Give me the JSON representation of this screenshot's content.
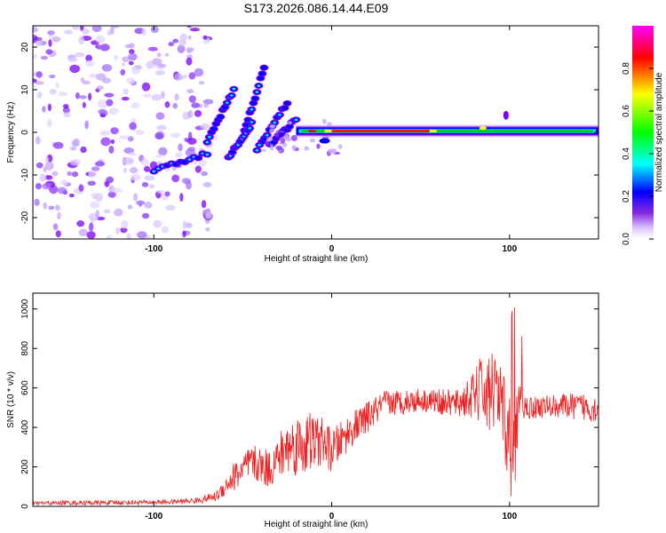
{
  "title": "S173.2026.086.14.44.E09",
  "chart_data": [
    {
      "type": "heatmap",
      "name": "spectrogram",
      "xlabel": "Height of straight line (km)",
      "ylabel": "Frequency (Hz)",
      "xlim": [
        -168,
        150
      ],
      "ylim": [
        -25,
        25
      ],
      "xticks": [
        -100,
        0,
        100
      ],
      "yticks": [
        -20,
        -10,
        0,
        10,
        20
      ],
      "grid": false,
      "colorbar": {
        "label": "Normalized spectral amplitude",
        "range": [
          0.0,
          1.0
        ],
        "ticks": [
          0.0,
          0.2,
          0.4,
          0.6,
          0.8
        ],
        "tick_labels": [
          "0.0",
          "0.2",
          "0.4",
          "0.6",
          "0.8"
        ],
        "colors": [
          "#ffffff",
          "#dcc8ff",
          "#7a00ff",
          "#0000ff",
          "#00ffff",
          "#00ff00",
          "#ffff00",
          "#ff0000",
          "#ff00ff"
        ]
      },
      "features": {
        "noise_region_x": [
          -168,
          -70
        ],
        "noise_blob_count": 300,
        "main_line": {
          "x": [
            -20,
            150
          ],
          "frequency_hz": 0.3,
          "peak_amplitude_x": [
            0,
            55
          ]
        },
        "chirp_streaks": [
          {
            "x": [
              -100,
              -70
            ],
            "f": [
              -9,
              -5
            ]
          },
          {
            "x": [
              -70,
              -55
            ],
            "f": [
              -2,
              10
            ]
          },
          {
            "x": [
              -50,
              -38
            ],
            "f": [
              -1,
              15
            ]
          },
          {
            "x": [
              -58,
              -45
            ],
            "f": [
              -6,
              2
            ]
          },
          {
            "x": [
              -42,
              -25
            ],
            "f": [
              -4,
              7
            ]
          },
          {
            "x": [
              -35,
              -20
            ],
            "f": [
              -3,
              3
            ]
          }
        ]
      }
    },
    {
      "type": "line",
      "name": "snr",
      "xlabel": "Height of straight line (km)",
      "ylabel": "SNR (10 * v/v)",
      "xlim": [
        -168,
        150
      ],
      "ylim": [
        0,
        1080
      ],
      "xticks": [
        -100,
        0,
        100
      ],
      "yticks": [
        0,
        200,
        400,
        600,
        800,
        1000
      ],
      "grid": false,
      "color": "#ee2222",
      "series": [
        {
          "name": "SNR",
          "x": [
            -168,
            -150,
            -130,
            -110,
            -90,
            -75,
            -65,
            -60,
            -55,
            -45,
            -35,
            -25,
            -15,
            -5,
            0,
            10,
            20,
            30,
            50,
            70,
            80,
            85,
            90,
            95,
            100,
            103,
            105,
            110,
            130,
            150
          ],
          "y": [
            15,
            18,
            18,
            20,
            22,
            30,
            50,
            100,
            150,
            220,
            190,
            300,
            320,
            330,
            280,
            380,
            450,
            520,
            540,
            520,
            560,
            600,
            480,
            520,
            330,
            200,
            520,
            500,
            510,
            500
          ],
          "spread": [
            10,
            12,
            12,
            12,
            12,
            15,
            25,
            50,
            80,
            90,
            100,
            140,
            170,
            120,
            110,
            90,
            80,
            70,
            60,
            70,
            120,
            200,
            180,
            210,
            250,
            300,
            110,
            60,
            60,
            80
          ]
        }
      ]
    }
  ]
}
